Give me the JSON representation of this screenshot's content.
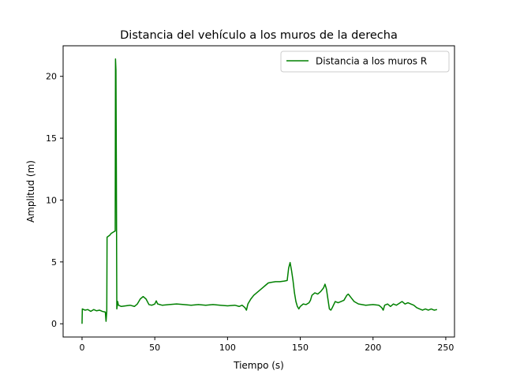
{
  "chart_data": {
    "type": "line",
    "title": "Distancia del vehículo a los muros de la derecha",
    "xlabel": "Tiempo (s)",
    "ylabel": "Amplitud (m)",
    "xlim": [
      -13,
      256
    ],
    "ylim": [
      -1.07,
      22.47
    ],
    "xticks": [
      0,
      50,
      100,
      150,
      200,
      250
    ],
    "yticks": [
      0,
      5,
      10,
      15,
      20
    ],
    "grid": false,
    "legend_position": "top-right",
    "series": [
      {
        "name": "Distancia a los muros R",
        "color": "#008000",
        "points": [
          [
            0,
            0
          ],
          [
            0.2,
            1.2
          ],
          [
            2,
            1.1
          ],
          [
            4,
            1.15
          ],
          [
            6,
            1.0
          ],
          [
            8,
            1.15
          ],
          [
            10,
            1.05
          ],
          [
            12,
            1.1
          ],
          [
            14,
            1.0
          ],
          [
            16,
            0.95
          ],
          [
            16.5,
            0.2
          ],
          [
            17,
            1.0
          ],
          [
            17.2,
            7.0
          ],
          [
            19,
            7.15
          ],
          [
            20,
            7.3
          ],
          [
            22,
            7.45
          ],
          [
            22.8,
            7.5
          ],
          [
            23,
            21.4
          ],
          [
            23.3,
            20.5
          ],
          [
            23.6,
            12.0
          ],
          [
            23.9,
            1.2
          ],
          [
            24.5,
            1.8
          ],
          [
            25,
            1.5
          ],
          [
            27,
            1.4
          ],
          [
            30,
            1.45
          ],
          [
            33,
            1.5
          ],
          [
            36,
            1.4
          ],
          [
            38,
            1.6
          ],
          [
            40,
            2.0
          ],
          [
            42,
            2.2
          ],
          [
            44,
            2.0
          ],
          [
            46,
            1.55
          ],
          [
            48,
            1.5
          ],
          [
            50,
            1.6
          ],
          [
            51,
            1.85
          ],
          [
            52,
            1.6
          ],
          [
            55,
            1.5
          ],
          [
            60,
            1.55
          ],
          [
            65,
            1.6
          ],
          [
            70,
            1.55
          ],
          [
            75,
            1.5
          ],
          [
            80,
            1.55
          ],
          [
            85,
            1.5
          ],
          [
            90,
            1.55
          ],
          [
            95,
            1.5
          ],
          [
            100,
            1.45
          ],
          [
            105,
            1.5
          ],
          [
            108,
            1.4
          ],
          [
            110,
            1.5
          ],
          [
            112,
            1.3
          ],
          [
            113,
            1.1
          ],
          [
            114,
            1.6
          ],
          [
            116,
            2.0
          ],
          [
            118,
            2.3
          ],
          [
            120,
            2.5
          ],
          [
            122,
            2.7
          ],
          [
            124,
            2.9
          ],
          [
            126,
            3.1
          ],
          [
            128,
            3.3
          ],
          [
            130,
            3.35
          ],
          [
            133,
            3.4
          ],
          [
            136,
            3.4
          ],
          [
            139,
            3.45
          ],
          [
            141,
            3.5
          ],
          [
            142,
            4.5
          ],
          [
            143,
            4.95
          ],
          [
            144,
            4.3
          ],
          [
            145,
            3.5
          ],
          [
            146,
            2.5
          ],
          [
            147,
            1.8
          ],
          [
            148,
            1.4
          ],
          [
            149,
            1.2
          ],
          [
            150,
            1.4
          ],
          [
            152,
            1.6
          ],
          [
            154,
            1.55
          ],
          [
            156,
            1.7
          ],
          [
            157,
            1.9
          ],
          [
            158,
            2.3
          ],
          [
            160,
            2.5
          ],
          [
            162,
            2.4
          ],
          [
            164,
            2.6
          ],
          [
            166,
            2.9
          ],
          [
            167,
            3.2
          ],
          [
            168,
            2.8
          ],
          [
            169,
            2.0
          ],
          [
            170,
            1.2
          ],
          [
            171,
            1.1
          ],
          [
            172,
            1.3
          ],
          [
            174,
            1.8
          ],
          [
            176,
            1.7
          ],
          [
            178,
            1.8
          ],
          [
            180,
            1.9
          ],
          [
            182,
            2.3
          ],
          [
            183,
            2.4
          ],
          [
            185,
            2.1
          ],
          [
            187,
            1.8
          ],
          [
            190,
            1.6
          ],
          [
            195,
            1.5
          ],
          [
            200,
            1.55
          ],
          [
            204,
            1.5
          ],
          [
            206,
            1.3
          ],
          [
            207,
            1.1
          ],
          [
            208,
            1.5
          ],
          [
            210,
            1.6
          ],
          [
            212,
            1.4
          ],
          [
            214,
            1.6
          ],
          [
            216,
            1.5
          ],
          [
            218,
            1.65
          ],
          [
            220,
            1.8
          ],
          [
            222,
            1.6
          ],
          [
            224,
            1.7
          ],
          [
            226,
            1.6
          ],
          [
            228,
            1.5
          ],
          [
            230,
            1.3
          ],
          [
            232,
            1.2
          ],
          [
            234,
            1.1
          ],
          [
            236,
            1.2
          ],
          [
            238,
            1.1
          ],
          [
            240,
            1.2
          ],
          [
            242,
            1.1
          ],
          [
            244,
            1.15
          ]
        ]
      }
    ]
  }
}
